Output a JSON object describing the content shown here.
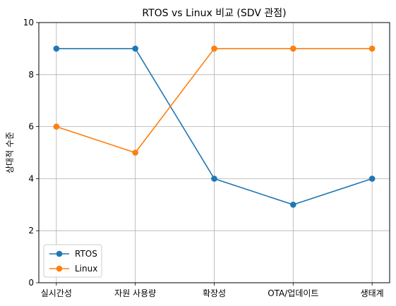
{
  "chart_data": {
    "type": "line",
    "title": "RTOS vs Linux 비교 (SDV 관점)",
    "xlabel": "",
    "ylabel": "상대적 수준",
    "categories": [
      "실시간성",
      "자원 사용량",
      "확장성",
      "OTA/업데이트",
      "생태계"
    ],
    "ylim": [
      0,
      10
    ],
    "yticks": [
      0,
      2,
      4,
      6,
      8,
      10
    ],
    "grid": true,
    "legend_position": "lower-left",
    "series": [
      {
        "name": "RTOS",
        "color": "#1f77b4",
        "marker": "circle",
        "values": [
          9,
          9,
          4,
          3,
          4
        ]
      },
      {
        "name": "Linux",
        "color": "#ff7f0e",
        "marker": "circle",
        "values": [
          6,
          5,
          9,
          9,
          9
        ]
      }
    ]
  }
}
